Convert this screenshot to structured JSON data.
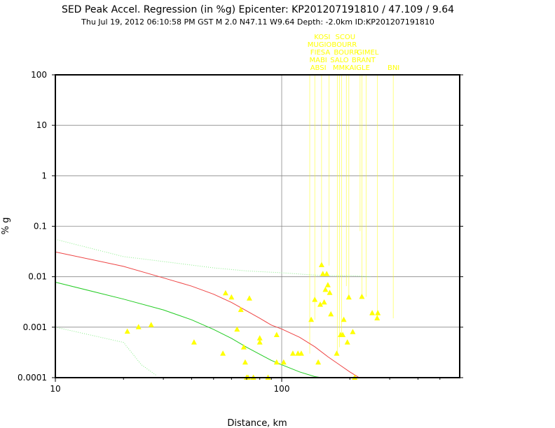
{
  "chart_data": {
    "type": "scatter",
    "title": "SED Peak Accel. Regression (in %g) Epicenter: KP201207191810 / 47.109 / 9.64",
    "subtitle": "Thu Jul 19, 2012 06:10:58 PM GST   M 2.0    N47.11 W9.64   Depth: -2.0km   ID:KP201207191810",
    "xlabel": "Distance, km",
    "ylabel": "% g",
    "x_scale": "log",
    "y_scale": "log",
    "xlim": [
      10,
      550
    ],
    "ylim": [
      0.0001,
      100
    ],
    "grid": true,
    "x_ticks": [
      {
        "value": 10,
        "label": "10"
      },
      {
        "value": 100,
        "label": "100"
      }
    ],
    "y_ticks": [
      {
        "value": 0.0001,
        "label": "0.0001"
      },
      {
        "value": 0.001,
        "label": "0.001"
      },
      {
        "value": 0.01,
        "label": "0.01"
      },
      {
        "value": 0.1,
        "label": "0.1"
      },
      {
        "value": 1,
        "label": "1"
      },
      {
        "value": 10,
        "label": "10"
      },
      {
        "value": 100,
        "label": "100"
      }
    ],
    "colors": {
      "stations": "#ffff00",
      "regression": "#ee4444",
      "minus_sigma": "#22cc22",
      "plus_sigma_dotted": "#88ee88",
      "gridline": "#888888",
      "frame": "#000000"
    },
    "regression": {
      "name": "",
      "x": [
        10,
        20,
        30,
        40,
        50,
        60,
        70,
        80,
        90,
        100,
        120,
        140,
        160,
        180,
        200,
        220
      ],
      "y": [
        0.031,
        0.016,
        0.0095,
        0.0065,
        0.0045,
        0.0031,
        0.0021,
        0.0015,
        0.0011,
        0.00092,
        0.00063,
        0.00041,
        0.00026,
        0.00018,
        0.00013,
        0.0001
      ]
    },
    "minus_sigma": {
      "name": "",
      "x": [
        10,
        20,
        30,
        40,
        50,
        60,
        70,
        80,
        90,
        100,
        120,
        140,
        150
      ],
      "y": [
        0.0078,
        0.0036,
        0.0022,
        0.0014,
        0.0009,
        0.0006,
        0.0004,
        0.00029,
        0.00022,
        0.00018,
        0.00013,
        0.000105,
        0.0001
      ]
    },
    "plus_sigma_dotted": {
      "name": "",
      "x": [
        10,
        20,
        30,
        50,
        70,
        100,
        150,
        200,
        250
      ],
      "y": [
        0.055,
        0.025,
        0.02,
        0.015,
        0.013,
        0.012,
        0.0105,
        0.0105,
        0.01
      ]
    },
    "lower_dotted": {
      "name": "",
      "x": [
        10,
        20,
        24,
        28
      ],
      "y": [
        0.001,
        0.0005,
        0.00018,
        0.00011
      ]
    },
    "observations": {
      "x": [
        20.8,
        23.3,
        26.5,
        41,
        55,
        56.5,
        60,
        63.5,
        66,
        68,
        69,
        70,
        71,
        72,
        75,
        80,
        80,
        87,
        95,
        95,
        102,
        112,
        118,
        122,
        135,
        140,
        145,
        148,
        150,
        152,
        154,
        156,
        158,
        160,
        163,
        165,
        175,
        182,
        186,
        188,
        195,
        198,
        206,
        210,
        226,
        251,
        264,
        266
      ],
      "y": [
        0.00082,
        0.001,
        0.0011,
        0.0005,
        0.0003,
        0.0047,
        0.0039,
        0.0009,
        0.0022,
        0.0004,
        0.0002,
        0.0001,
        0.0001,
        0.0037,
        0.0001,
        0.0006,
        0.0005,
        0.0001,
        0.0007,
        0.0002,
        0.0002,
        0.0003,
        0.0003,
        0.0003,
        0.0014,
        0.0035,
        0.0002,
        0.0028,
        0.017,
        0.0113,
        0.0031,
        0.0055,
        0.0113,
        0.0068,
        0.0048,
        0.0018,
        0.0003,
        0.0007,
        0.0007,
        0.0014,
        0.0005,
        0.0039,
        0.0008,
        0.0001,
        0.004,
        0.0019,
        0.0015,
        0.0019
      ]
    },
    "station_lines": [
      {
        "x": 133,
        "y": 0.0003
      },
      {
        "x": 140,
        "y": 0.0014
      },
      {
        "x": 150,
        "y": 0.017
      },
      {
        "x": 162,
        "y": 0.0166
      },
      {
        "x": 176,
        "y": 0.0003
      },
      {
        "x": 180,
        "y": 0.0004
      },
      {
        "x": 184,
        "y": 0.0007
      },
      {
        "x": 193,
        "y": 0.0065
      },
      {
        "x": 198,
        "y": 0.0039
      },
      {
        "x": 222,
        "y": 0.08
      },
      {
        "x": 226,
        "y": 0.004
      },
      {
        "x": 236,
        "y": 0.004
      },
      {
        "x": 265,
        "y": 0.0015
      },
      {
        "x": 311,
        "y": 0.0015
      }
    ],
    "station_labels": [
      {
        "label": "KOSI",
        "row": 0,
        "x": 151
      },
      {
        "label": "SCOU",
        "row": 0,
        "x": 191
      },
      {
        "label": "MUGIO",
        "row": 1,
        "x": 147
      },
      {
        "label": "BOURR",
        "row": 1,
        "x": 189
      },
      {
        "label": "FIESA",
        "row": 2,
        "x": 148
      },
      {
        "label": "BOURR",
        "row": 2,
        "x": 193
      },
      {
        "label": "GIMEL",
        "row": 2,
        "x": 240
      },
      {
        "label": "MABI",
        "row": 3,
        "x": 145
      },
      {
        "label": "SALO",
        "row": 3,
        "x": 180
      },
      {
        "label": "BRANT",
        "row": 3,
        "x": 230
      },
      {
        "label": "ABSI",
        "row": 4,
        "x": 145
      },
      {
        "label": "MMK",
        "row": 4,
        "x": 183
      },
      {
        "label": "AIGLE",
        "row": 4,
        "x": 221
      },
      {
        "label": "BNI",
        "row": 4,
        "x": 312
      }
    ]
  }
}
